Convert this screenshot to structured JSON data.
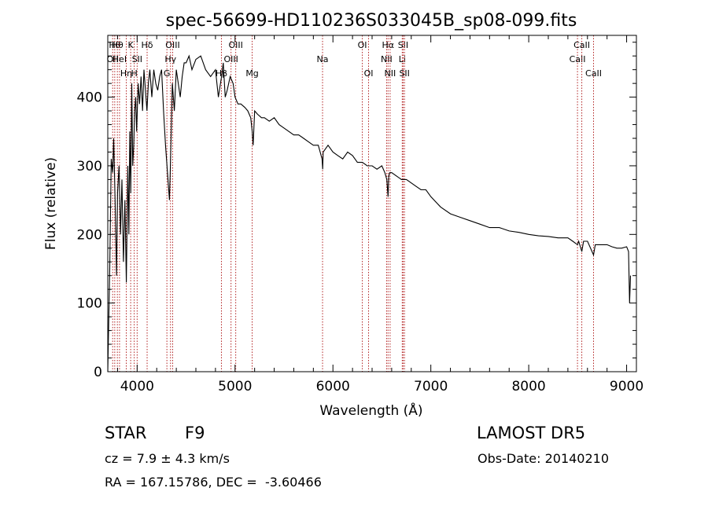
{
  "chart_data": {
    "type": "line",
    "title": "spec-56699-HD110236S033045B_sp08-099.fits",
    "xlabel": "Wavelength (Å)",
    "ylabel": "Flux (relative)",
    "xlim": [
      3700,
      9100
    ],
    "ylim": [
      0,
      490
    ],
    "xticks": [
      4000,
      5000,
      6000,
      7000,
      8000,
      9000
    ],
    "yticks": [
      0,
      100,
      200,
      300,
      400
    ],
    "grid": false,
    "line_color": "#000000",
    "marker_color": "#b22222",
    "series": [
      {
        "x": [
          3700,
          3720,
          3735,
          3750,
          3760,
          3775,
          3790,
          3800,
          3815,
          3830,
          3845,
          3860,
          3875,
          3890,
          3905,
          3915,
          3925,
          3935,
          3945,
          3955,
          3965,
          3975,
          3985,
          3995,
          4010,
          4025,
          4040,
          4055,
          4070,
          4085,
          4100,
          4115,
          4130,
          4150,
          4170,
          4190,
          4210,
          4230,
          4250,
          4270,
          4290,
          4310,
          4330,
          4340,
          4360,
          4380,
          4400,
          4420,
          4440,
          4460,
          4480,
          4500,
          4530,
          4560,
          4600,
          4650,
          4700,
          4750,
          4800,
          4830,
          4862,
          4880,
          4900,
          4920,
          4950,
          4980,
          5000,
          5030,
          5060,
          5100,
          5130,
          5160,
          5175,
          5185,
          5200,
          5230,
          5270,
          5300,
          5350,
          5400,
          5450,
          5500,
          5550,
          5600,
          5650,
          5700,
          5750,
          5800,
          5850,
          5889,
          5895,
          5900,
          5950,
          6000,
          6050,
          6100,
          6150,
          6200,
          6250,
          6300,
          6350,
          6400,
          6450,
          6500,
          6530,
          6550,
          6563,
          6570,
          6580,
          6600,
          6650,
          6700,
          6750,
          6800,
          6850,
          6900,
          6950,
          7000,
          7100,
          7200,
          7300,
          7400,
          7500,
          7600,
          7700,
          7800,
          7900,
          8000,
          8100,
          8200,
          8300,
          8400,
          8450,
          8498,
          8510,
          8542,
          8560,
          8600,
          8662,
          8680,
          8700,
          8750,
          8800,
          8850,
          8900,
          8950,
          9000,
          9020,
          9030,
          9040
        ],
        "y": [
          0,
          150,
          310,
          290,
          340,
          250,
          140,
          260,
          300,
          200,
          280,
          160,
          250,
          130,
          300,
          200,
          350,
          260,
          420,
          300,
          330,
          380,
          400,
          350,
          420,
          390,
          430,
          380,
          440,
          410,
          380,
          420,
          440,
          400,
          440,
          420,
          410,
          430,
          440,
          380,
          330,
          290,
          250,
          300,
          420,
          380,
          440,
          420,
          400,
          430,
          450,
          450,
          460,
          440,
          455,
          460,
          440,
          430,
          440,
          400,
          430,
          450,
          400,
          410,
          430,
          420,
          400,
          390,
          390,
          385,
          380,
          370,
          350,
          330,
          380,
          375,
          370,
          370,
          365,
          370,
          360,
          355,
          350,
          345,
          345,
          340,
          335,
          330,
          330,
          310,
          295,
          320,
          330,
          320,
          315,
          310,
          320,
          315,
          305,
          305,
          300,
          300,
          295,
          300,
          290,
          280,
          255,
          285,
          290,
          290,
          285,
          280,
          280,
          275,
          270,
          265,
          265,
          255,
          240,
          230,
          225,
          220,
          215,
          210,
          210,
          205,
          203,
          200,
          198,
          197,
          195,
          195,
          190,
          185,
          190,
          175,
          190,
          190,
          170,
          185,
          185,
          185,
          185,
          182,
          180,
          180,
          182,
          175,
          100,
          140
        ]
      }
    ],
    "line_markers": [
      {
        "w": 3750,
        "label": "OII",
        "row": 2
      },
      {
        "w": 3771,
        "label": "Hθ",
        "row": 1
      },
      {
        "w": 3798,
        "label": "Hθ",
        "row": 1
      },
      {
        "w": 3820,
        "label": "HeI",
        "row": 2
      },
      {
        "w": 3889,
        "label": "Hη",
        "row": 3
      },
      {
        "w": 3934,
        "label": "K",
        "row": 1
      },
      {
        "w": 3970,
        "label": "H",
        "row": 3
      },
      {
        "w": 4000,
        "label": "SII",
        "row": 2
      },
      {
        "w": 4102,
        "label": "Hδ",
        "row": 1
      },
      {
        "w": 4304,
        "label": "G",
        "row": 3
      },
      {
        "w": 4341,
        "label": "Hγ",
        "row": 2
      },
      {
        "w": 4363,
        "label": "OIII",
        "row": 1
      },
      {
        "w": 4861,
        "label": "Hβ",
        "row": 3
      },
      {
        "w": 4959,
        "label": "OIII",
        "row": 2
      },
      {
        "w": 5007,
        "label": "OIII",
        "row": 1
      },
      {
        "w": 5175,
        "label": "Mg",
        "row": 3
      },
      {
        "w": 5894,
        "label": "Na",
        "row": 2
      },
      {
        "w": 6300,
        "label": "OI",
        "row": 1
      },
      {
        "w": 6364,
        "label": "OI",
        "row": 3
      },
      {
        "w": 6548,
        "label": "NII",
        "row": 2
      },
      {
        "w": 6563,
        "label": "Hα",
        "row": 1
      },
      {
        "w": 6584,
        "label": "NII",
        "row": 3
      },
      {
        "w": 6708,
        "label": "Li",
        "row": 2
      },
      {
        "w": 6717,
        "label": "SII",
        "row": 1
      },
      {
        "w": 6731,
        "label": "SII",
        "row": 3
      },
      {
        "w": 8498,
        "label": "CaII",
        "row": 2
      },
      {
        "w": 8542,
        "label": "CaII",
        "row": 1
      },
      {
        "w": 8662,
        "label": "CaII",
        "row": 3
      }
    ]
  },
  "info": {
    "object_class": "STAR",
    "subclass": "F9",
    "survey": "LAMOST DR5",
    "cz": "cz = 7.9 ± 4.3 km/s",
    "obs_date": "Obs-Date: 20140210",
    "coords": "RA = 167.15786, DEC =  -3.60466"
  }
}
